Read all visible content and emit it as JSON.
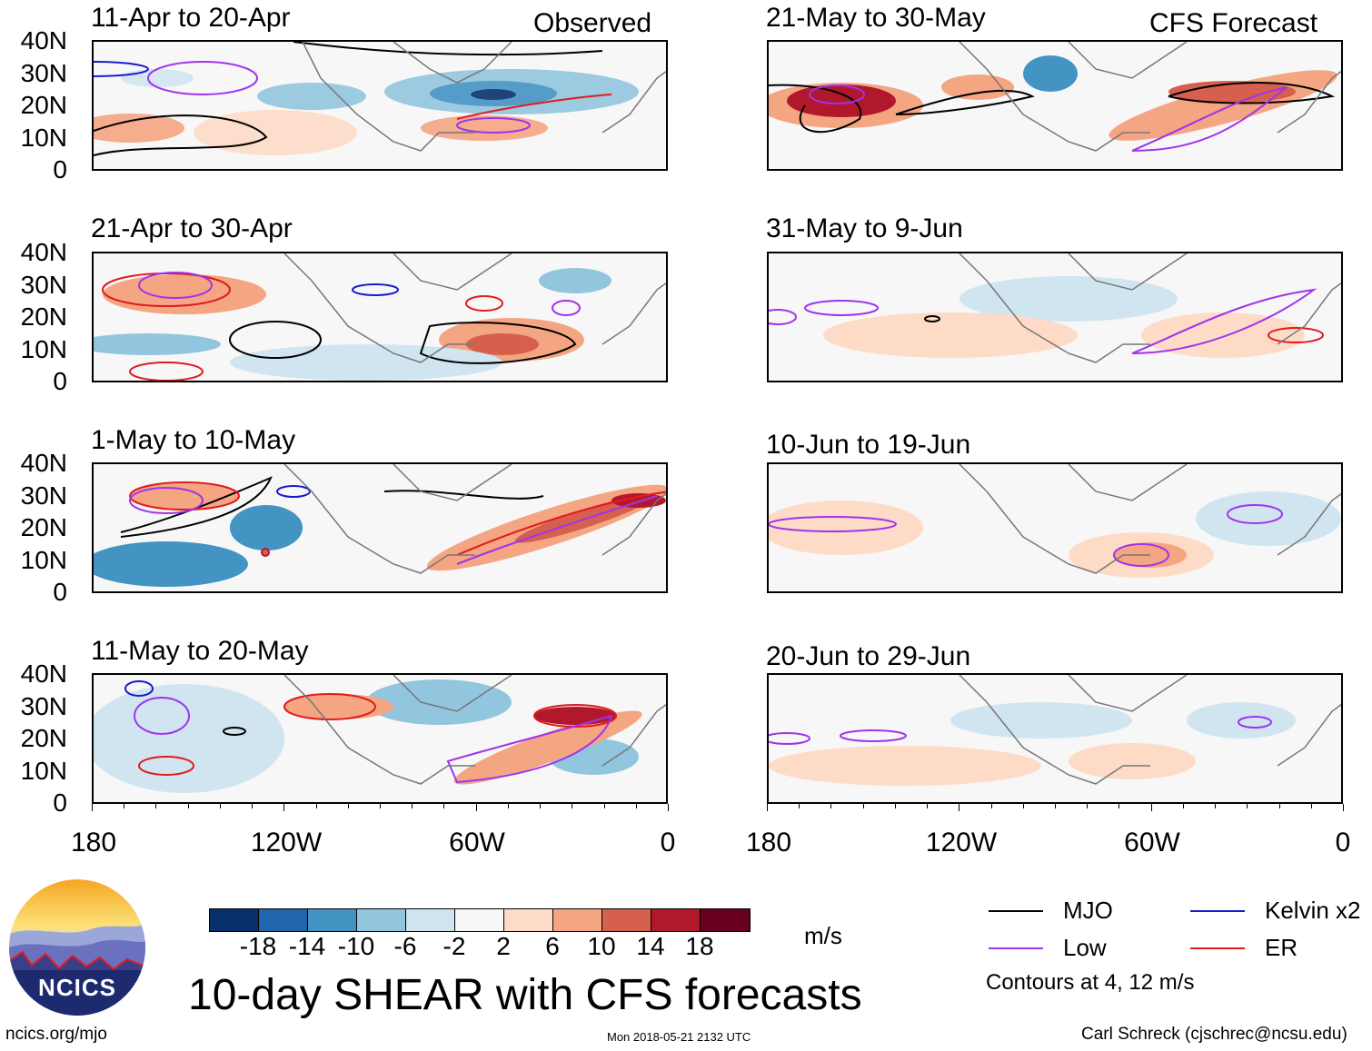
{
  "left_corner_label": "Observed",
  "right_corner_label": "CFS Forecast",
  "y_ticks": [
    "40N",
    "30N",
    "20N",
    "10N",
    "0"
  ],
  "x_ticks": [
    "180",
    "120W",
    "60W",
    "0"
  ],
  "panels": [
    {
      "title": "11-Apr to 20-Apr",
      "column": "observed"
    },
    {
      "title": "21-Apr to 30-Apr",
      "column": "observed"
    },
    {
      "title": "1-May to 10-May",
      "column": "observed"
    },
    {
      "title": "11-May to 20-May",
      "column": "observed"
    },
    {
      "title": "21-May to 30-May",
      "column": "forecast"
    },
    {
      "title": "31-May to 9-Jun",
      "column": "forecast"
    },
    {
      "title": "10-Jun to 19-Jun",
      "column": "forecast"
    },
    {
      "title": "20-Jun to 29-Jun",
      "column": "forecast"
    }
  ],
  "colorbar": {
    "labels": [
      "-18",
      "-14",
      "-10",
      "-6",
      "-2",
      "2",
      "6",
      "10",
      "14",
      "18"
    ],
    "colors": [
      "#08306b",
      "#2166ac",
      "#4393c3",
      "#92c5de",
      "#d1e5f0",
      "#f7f7f7",
      "#fddbc7",
      "#f4a582",
      "#d6604d",
      "#b2182b",
      "#67001f"
    ],
    "units": "m/s"
  },
  "legend": {
    "items": [
      {
        "label": "MJO",
        "color": "#000000"
      },
      {
        "label": "Kelvin x2",
        "color": "#1a1acc"
      },
      {
        "label": "Low",
        "color": "#a033ee"
      },
      {
        "label": "ER",
        "color": "#e31a1c"
      }
    ],
    "note": "Contours at 4, 12 m/s"
  },
  "title": "10-day SHEAR with CFS forecasts",
  "logo_text": "NCICS",
  "footer": {
    "left": "ncics.org/mjo",
    "center": "Mon 2018-05-21 2132 UTC",
    "right": "Carl Schreck (cjschrec@ncsu.edu)"
  }
}
